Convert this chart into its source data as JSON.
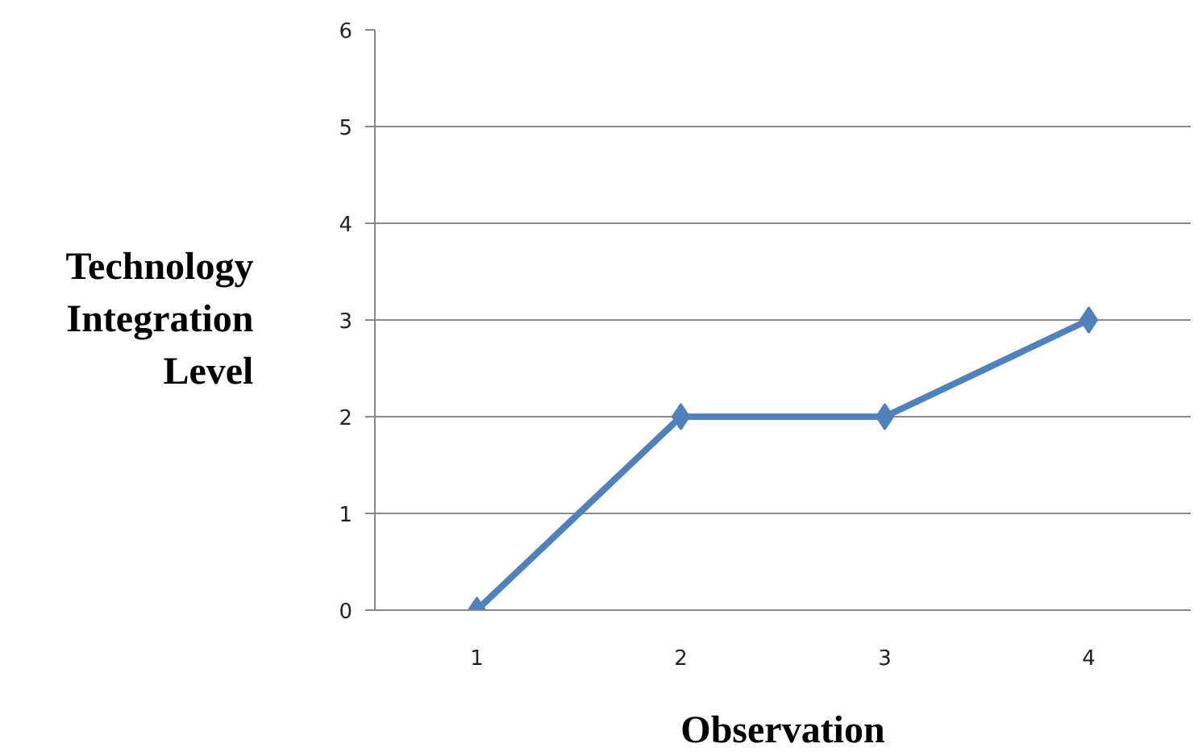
{
  "chart_data": {
    "type": "line",
    "xlabel": "Observation",
    "ylabel": "Technology Integration Level",
    "categories": [
      "1",
      "2",
      "3",
      "4"
    ],
    "series": [
      {
        "color": "#4f81bd",
        "values": [
          0,
          2,
          2,
          3
        ]
      }
    ],
    "ylim": [
      0,
      6
    ],
    "yticks": [
      0,
      1,
      2,
      3,
      4,
      5,
      6
    ],
    "grid": "y",
    "marker": "diamond",
    "line_style": "solid"
  }
}
